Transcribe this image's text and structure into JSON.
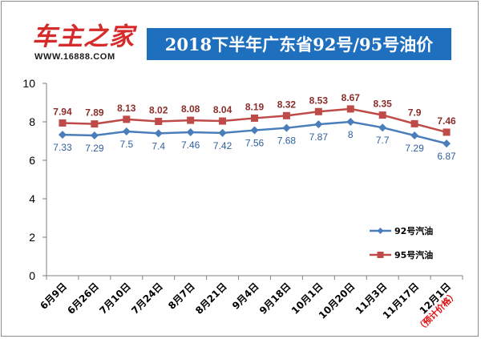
{
  "brand": {
    "logo_text": "车主之家",
    "logo_url": "WWW.16888.COM"
  },
  "chart_data": {
    "type": "line",
    "title": "2018下半年广东省92号/95号油价",
    "categories": [
      "6月9日",
      "6月26日",
      "7月10日",
      "7月24日",
      "8月7日",
      "8月21日",
      "9月4日",
      "9月18日",
      "10月1日",
      "10月20日",
      "11月3日",
      "11月17日",
      "12月1日"
    ],
    "category_note": "（预计价格）",
    "series": [
      {
        "name": "92号汽油",
        "color": "#4a7ebb",
        "marker": "diamond",
        "values": [
          7.33,
          7.29,
          7.5,
          7.4,
          7.46,
          7.42,
          7.56,
          7.68,
          7.87,
          8,
          7.7,
          7.29,
          6.87
        ]
      },
      {
        "name": "95号汽油",
        "color": "#be4b48",
        "marker": "square",
        "values": [
          7.94,
          7.89,
          8.13,
          8.02,
          8.08,
          8.04,
          8.19,
          8.32,
          8.53,
          8.67,
          8.35,
          7.9,
          7.46
        ]
      }
    ],
    "ylim": [
      0,
      10
    ],
    "yticks": [
      0,
      2,
      4,
      6,
      8,
      10
    ],
    "grid": false,
    "legend": "right"
  }
}
